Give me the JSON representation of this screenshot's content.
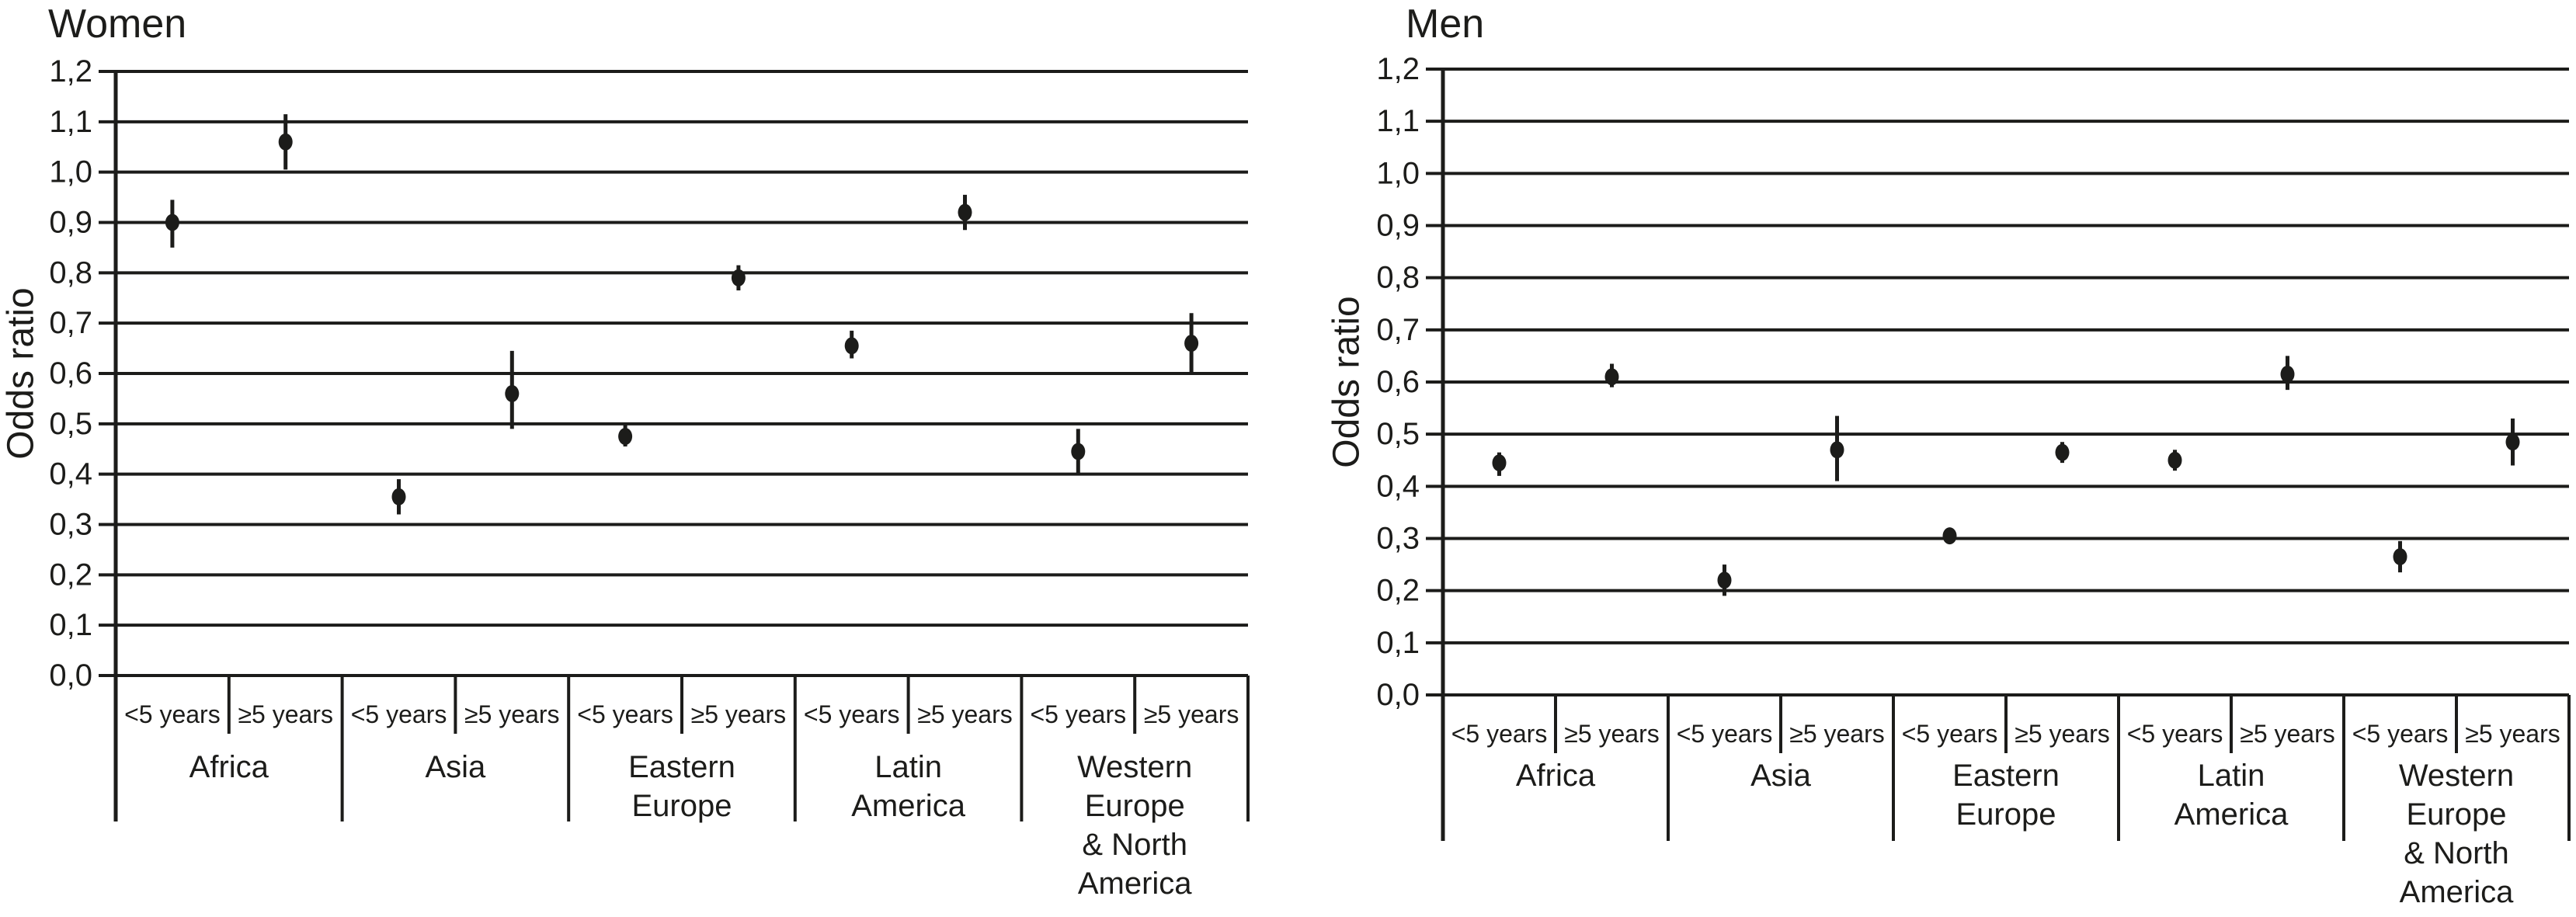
{
  "figure": {
    "background": "#ffffff",
    "ink_color": "#1c1c1a"
  },
  "chart_data": [
    {
      "type": "scatter",
      "title": "Women",
      "ylabel": "Odds ratio",
      "ylim": [
        0.0,
        1.2
      ],
      "ytick_step": 0.1,
      "decimal_style": "comma",
      "grid": true,
      "legend": "none",
      "ytick_labels_bottom_to_top": [
        "0,0",
        "0,1",
        "0,2",
        "0,3",
        "0,4",
        "0,5",
        "0,6",
        "0,7",
        "0,8",
        "0,9",
        "1,0",
        "1,1",
        "1,2"
      ],
      "subcategories": [
        "<5 years",
        "≥5 years"
      ],
      "regions": [
        {
          "name": "Africa",
          "label_lines": [
            "Africa"
          ]
        },
        {
          "name": "Asia",
          "label_lines": [
            "Asia"
          ]
        },
        {
          "name": "Eastern Europe",
          "label_lines": [
            "Eastern",
            "Europe"
          ]
        },
        {
          "name": "Latin America",
          "label_lines": [
            "Latin",
            "America"
          ]
        },
        {
          "name": "Western Europe & North America",
          "label_lines": [
            "Western",
            "Europe",
            "& North",
            "America"
          ]
        }
      ],
      "points": [
        {
          "region": "Africa",
          "duration": "<5 years",
          "odds_ratio": 0.9,
          "ci_low": 0.85,
          "ci_high": 0.945
        },
        {
          "region": "Africa",
          "duration": "≥5 years",
          "odds_ratio": 1.06,
          "ci_low": 1.005,
          "ci_high": 1.115
        },
        {
          "region": "Asia",
          "duration": "<5 years",
          "odds_ratio": 0.355,
          "ci_low": 0.32,
          "ci_high": 0.39
        },
        {
          "region": "Asia",
          "duration": "≥5 years",
          "odds_ratio": 0.56,
          "ci_low": 0.49,
          "ci_high": 0.645
        },
        {
          "region": "Eastern Europe",
          "duration": "<5 years",
          "odds_ratio": 0.475,
          "ci_low": 0.455,
          "ci_high": 0.5
        },
        {
          "region": "Eastern Europe",
          "duration": "≥5 years",
          "odds_ratio": 0.79,
          "ci_low": 0.765,
          "ci_high": 0.815
        },
        {
          "region": "Latin America",
          "duration": "<5 years",
          "odds_ratio": 0.655,
          "ci_low": 0.63,
          "ci_high": 0.685
        },
        {
          "region": "Latin America",
          "duration": "≥5 years",
          "odds_ratio": 0.92,
          "ci_low": 0.885,
          "ci_high": 0.955
        },
        {
          "region": "Western Europe & North America",
          "duration": "<5 years",
          "odds_ratio": 0.445,
          "ci_low": 0.4,
          "ci_high": 0.49
        },
        {
          "region": "Western Europe & North America",
          "duration": "≥5 years",
          "odds_ratio": 0.66,
          "ci_low": 0.6,
          "ci_high": 0.72
        }
      ]
    },
    {
      "type": "scatter",
      "title": "Men",
      "ylabel": "Odds ratio",
      "ylim": [
        0.0,
        1.2
      ],
      "ytick_step": 0.1,
      "decimal_style": "comma",
      "grid": true,
      "legend": "none",
      "ytick_labels_bottom_to_top": [
        "0,0",
        "0,1",
        "0,2",
        "0,3",
        "0,4",
        "0,5",
        "0,6",
        "0,7",
        "0,8",
        "0,9",
        "1,0",
        "1,1",
        "1,2"
      ],
      "subcategories": [
        "<5 years",
        "≥5 years"
      ],
      "regions": [
        {
          "name": "Africa",
          "label_lines": [
            "Africa"
          ]
        },
        {
          "name": "Asia",
          "label_lines": [
            "Asia"
          ]
        },
        {
          "name": "Eastern Europe",
          "label_lines": [
            "Eastern",
            "Europe"
          ]
        },
        {
          "name": "Latin America",
          "label_lines": [
            "Latin",
            "America"
          ]
        },
        {
          "name": "Western Europe & North America",
          "label_lines": [
            "Western",
            "Europe",
            "& North",
            "America"
          ]
        }
      ],
      "points": [
        {
          "region": "Africa",
          "duration": "<5 years",
          "odds_ratio": 0.445,
          "ci_low": 0.42,
          "ci_high": 0.465
        },
        {
          "region": "Africa",
          "duration": "≥5 years",
          "odds_ratio": 0.61,
          "ci_low": 0.59,
          "ci_high": 0.635
        },
        {
          "region": "Asia",
          "duration": "<5 years",
          "odds_ratio": 0.22,
          "ci_low": 0.19,
          "ci_high": 0.25
        },
        {
          "region": "Asia",
          "duration": "≥5 years",
          "odds_ratio": 0.47,
          "ci_low": 0.41,
          "ci_high": 0.535
        },
        {
          "region": "Eastern Europe",
          "duration": "<5 years",
          "odds_ratio": 0.305,
          "ci_low": 0.29,
          "ci_high": 0.32
        },
        {
          "region": "Eastern Europe",
          "duration": "≥5 years",
          "odds_ratio": 0.465,
          "ci_low": 0.445,
          "ci_high": 0.485
        },
        {
          "region": "Latin America",
          "duration": "<5 years",
          "odds_ratio": 0.45,
          "ci_low": 0.43,
          "ci_high": 0.47
        },
        {
          "region": "Latin America",
          "duration": "≥5 years",
          "odds_ratio": 0.615,
          "ci_low": 0.585,
          "ci_high": 0.65
        },
        {
          "region": "Western Europe & North America",
          "duration": "<5 years",
          "odds_ratio": 0.265,
          "ci_low": 0.235,
          "ci_high": 0.295
        },
        {
          "region": "Western Europe & North America",
          "duration": "≥5 years",
          "odds_ratio": 0.485,
          "ci_low": 0.44,
          "ci_high": 0.53
        }
      ]
    }
  ]
}
